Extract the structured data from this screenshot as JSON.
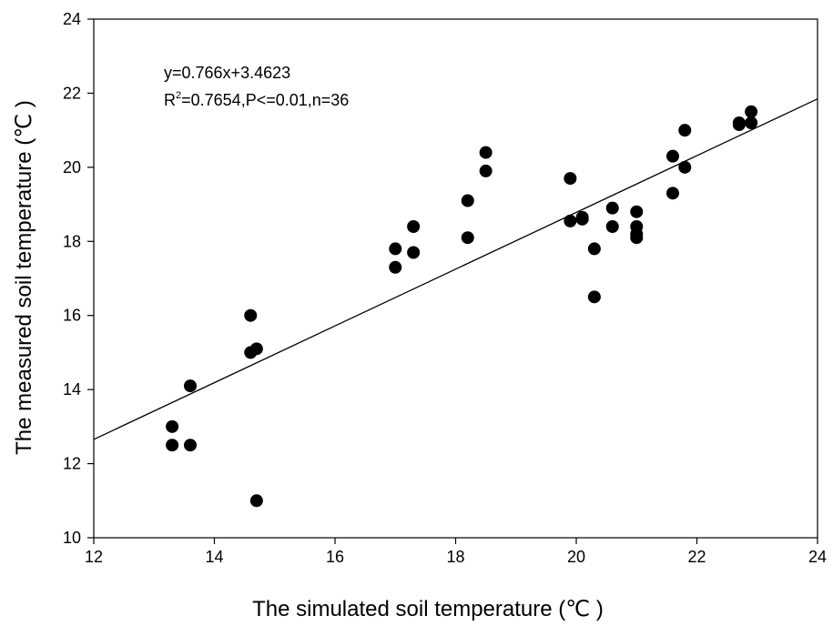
{
  "chart_data": {
    "type": "scatter",
    "xlabel": "The simulated soil temperature (℃ )",
    "ylabel": "The measured soil temperature (℃ )",
    "xlim": [
      12,
      24
    ],
    "ylim": [
      10,
      24
    ],
    "xticks": [
      "12",
      "14",
      "16",
      "18",
      "20",
      "22",
      "24"
    ],
    "yticks": [
      "10",
      "12",
      "14",
      "16",
      "18",
      "20",
      "22",
      "24"
    ],
    "grid": false,
    "annotation": {
      "equation": "y=0.766x+3.4623",
      "r2_prefix": "R",
      "r2_sup": "2",
      "r2_rest": "=0.7654,P<=0.01,n=36"
    },
    "regression": {
      "slope": 0.766,
      "intercept": 3.4623
    },
    "points": [
      [
        13.3,
        13.0
      ],
      [
        13.3,
        12.5
      ],
      [
        13.6,
        14.1
      ],
      [
        13.6,
        12.5
      ],
      [
        14.6,
        16.0
      ],
      [
        14.6,
        15.0
      ],
      [
        14.7,
        15.1
      ],
      [
        14.7,
        11.0
      ],
      [
        17.0,
        17.8
      ],
      [
        17.0,
        17.3
      ],
      [
        17.3,
        18.4
      ],
      [
        17.3,
        17.7
      ],
      [
        18.2,
        19.1
      ],
      [
        18.2,
        18.1
      ],
      [
        18.5,
        20.4
      ],
      [
        18.5,
        19.9
      ],
      [
        19.9,
        19.7
      ],
      [
        19.9,
        18.55
      ],
      [
        20.1,
        18.6
      ],
      [
        20.1,
        18.65
      ],
      [
        20.3,
        17.8
      ],
      [
        20.3,
        16.5
      ],
      [
        20.6,
        18.9
      ],
      [
        20.6,
        18.4
      ],
      [
        21.0,
        18.8
      ],
      [
        21.0,
        18.4
      ],
      [
        21.0,
        18.2
      ],
      [
        21.0,
        18.1
      ],
      [
        21.6,
        20.3
      ],
      [
        21.6,
        19.3
      ],
      [
        21.8,
        21.0
      ],
      [
        21.8,
        20.0
      ],
      [
        22.7,
        21.2
      ],
      [
        22.7,
        21.15
      ],
      [
        22.9,
        21.5
      ],
      [
        22.9,
        21.2
      ]
    ]
  }
}
